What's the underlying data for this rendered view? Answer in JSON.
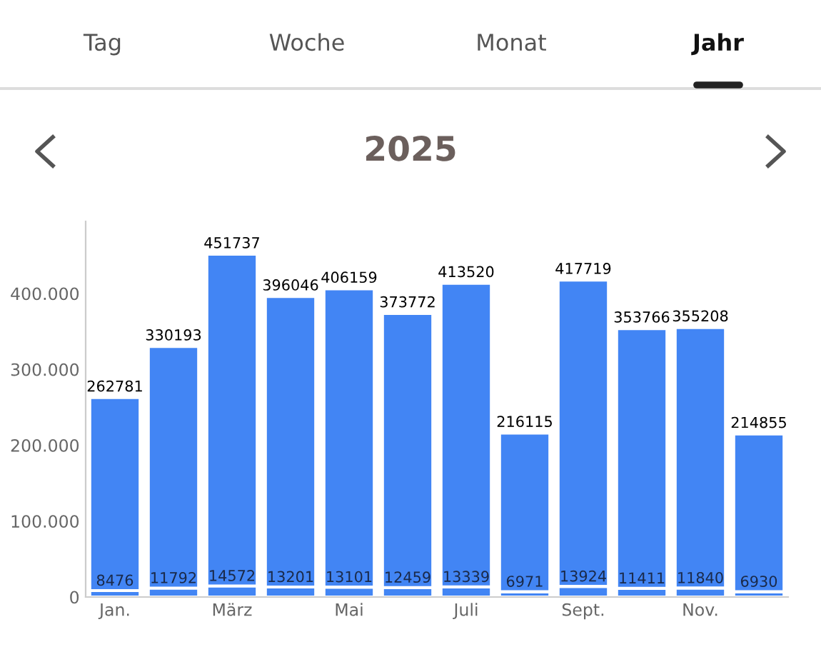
{
  "chart_data": {
    "type": "bar",
    "title": "2025",
    "annotations": [
      "Tag",
      "Woche",
      "Monat",
      "Jahr"
    ],
    "categories": [
      "Jan.",
      null,
      "März",
      null,
      "Mai",
      null,
      "Juli",
      null,
      "Sept.",
      null,
      "Nov.",
      null
    ],
    "stacked": true,
    "series": [
      {
        "color": "#4285f4",
        "values": [
          8476,
          11792,
          14572,
          13201,
          13101,
          12459,
          13339,
          6971,
          13924,
          11411,
          11840,
          6930
        ],
        "value_labels": [
          "8476",
          "11792",
          "14572",
          "13201",
          "13101",
          "12459",
          "13339",
          "6971",
          "13924",
          "11411",
          "11840",
          "6930"
        ]
      },
      {
        "color": "#4285f4",
        "values": [
          254305,
          318401,
          437165,
          382845,
          393058,
          361313,
          400181,
          209144,
          403795,
          342355,
          343368,
          207925
        ]
      }
    ],
    "totals": [
      "262781",
      "330193",
      "451737",
      "396046",
      "406159",
      "373772",
      "413520",
      "216115",
      "417719",
      "353766",
      "355208",
      "214855"
    ],
    "ylim": [
      0,
      495000
    ],
    "yticks": [
      0,
      {
        "value": 100000,
        "label": "100.000"
      },
      {
        "value": 200000,
        "label": "200.000"
      },
      {
        "value": 300000,
        "label": "300.000"
      },
      {
        "value": 400000,
        "label": "400.000"
      }
    ],
    "grid": false,
    "legend": false
  }
}
